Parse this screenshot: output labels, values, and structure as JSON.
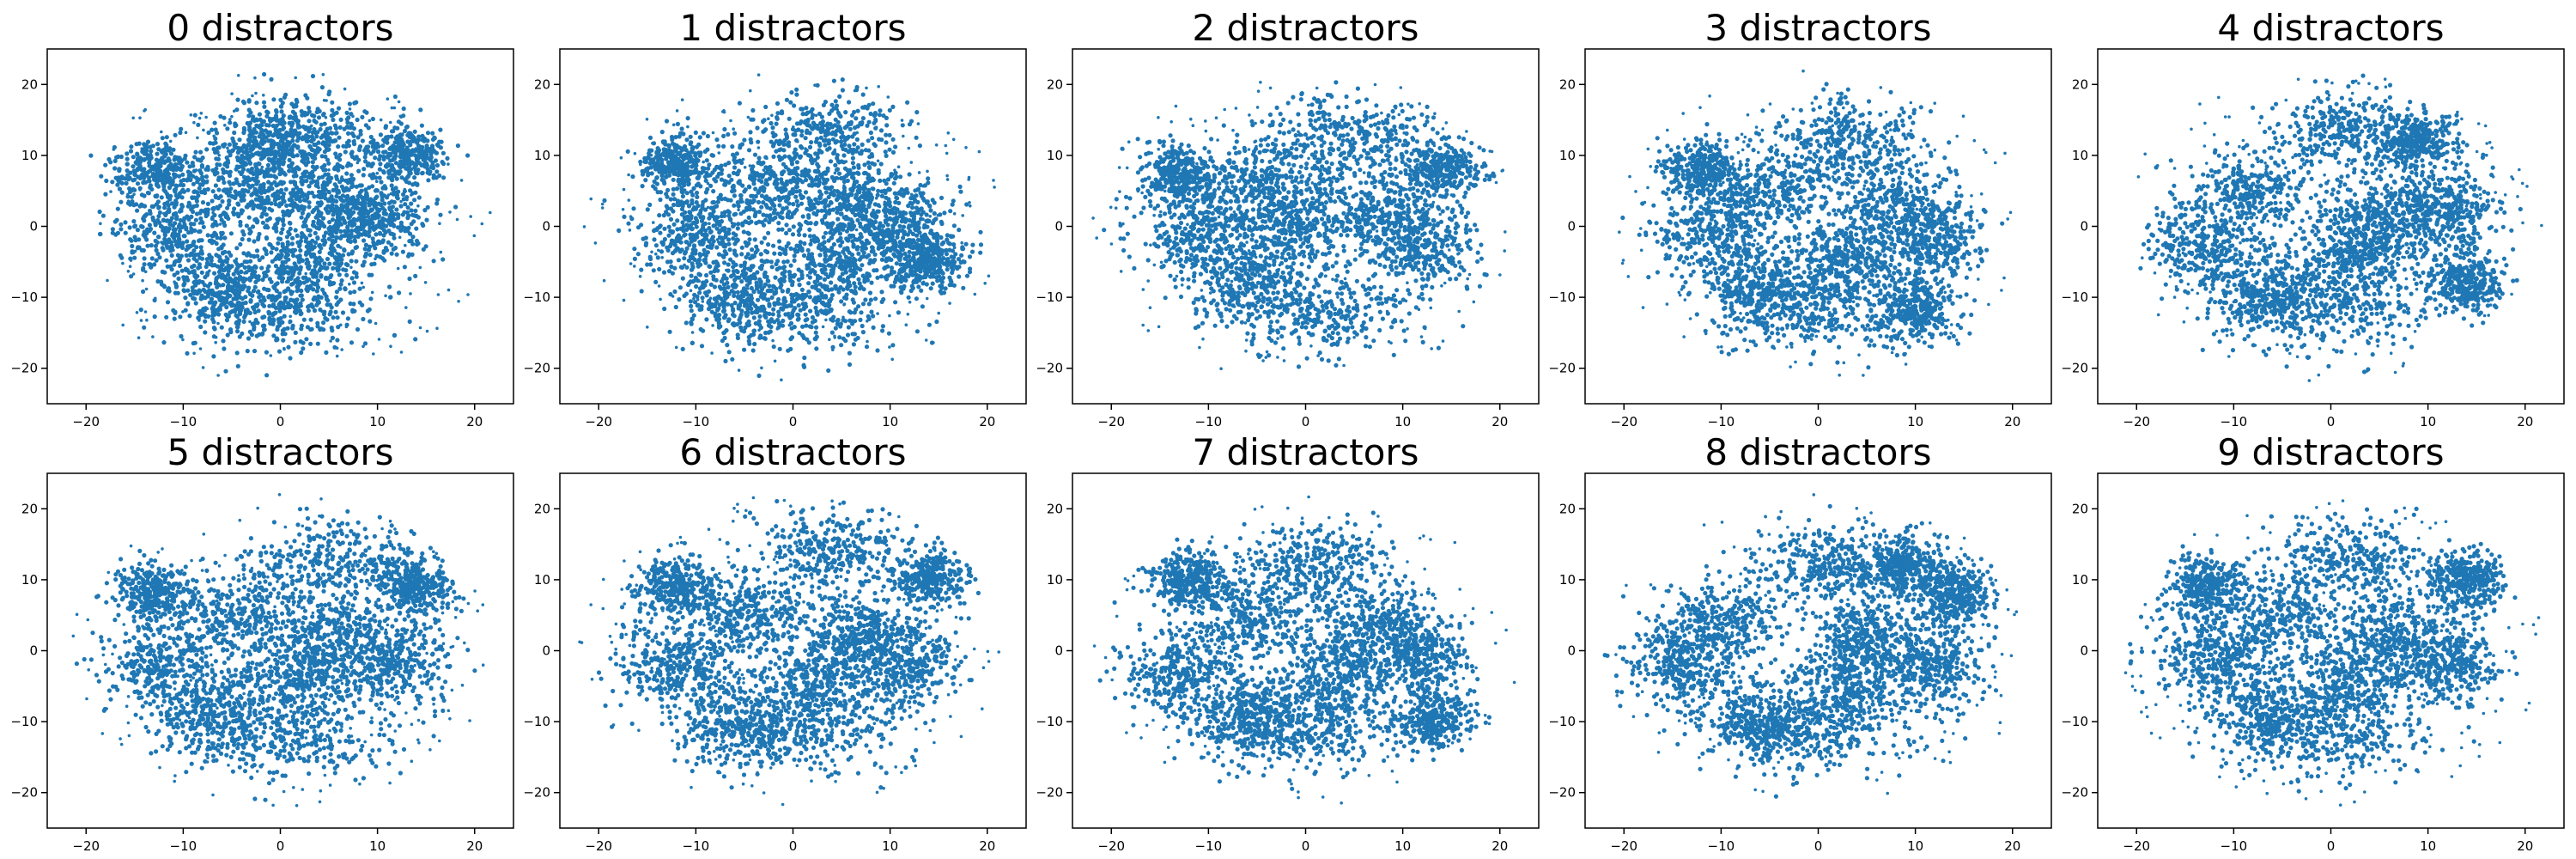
{
  "figure": {
    "marker_color": "#1f77b4",
    "axes_color": "#000000",
    "background": "#ffffff"
  },
  "chart_data": [
    {
      "type": "scatter",
      "title": "0 distractors",
      "xlabel": "",
      "ylabel": "",
      "xlim": [
        -24,
        24
      ],
      "ylim": [
        -25,
        25
      ],
      "xticks": [
        -20,
        -10,
        0,
        10,
        20
      ],
      "yticks": [
        -20,
        -10,
        0,
        10,
        20
      ],
      "grid": false,
      "legend": "none",
      "clusters": [
        [
          2.5,
          13,
          4,
          3
        ],
        [
          -4,
          5,
          3.5,
          3
        ],
        [
          -11,
          -1,
          3,
          3
        ],
        [
          5,
          3,
          3,
          3
        ],
        [
          0,
          -12,
          5,
          3
        ],
        [
          -6,
          -9,
          3,
          3
        ],
        [
          10,
          1,
          2.5,
          3
        ],
        [
          3,
          -5,
          3,
          3
        ],
        [
          -1,
          11,
          3,
          3
        ],
        [
          -13,
          8,
          2,
          2
        ],
        [
          13,
          10,
          2,
          2
        ]
      ],
      "seed": 11
    },
    {
      "type": "scatter",
      "title": "1 distractors",
      "xlabel": "",
      "ylabel": "",
      "xlim": [
        -24,
        24
      ],
      "ylim": [
        -25,
        25
      ],
      "xticks": [
        -20,
        -10,
        0,
        10,
        20
      ],
      "yticks": [
        -20,
        -10,
        0,
        10,
        20
      ],
      "grid": false,
      "legend": "none",
      "clusters": [
        [
          3,
          13,
          4,
          3
        ],
        [
          -3,
          5,
          3.5,
          3
        ],
        [
          -10,
          -1,
          3,
          3
        ],
        [
          6,
          4,
          3,
          3
        ],
        [
          1,
          -12,
          5,
          3
        ],
        [
          -6,
          -9,
          3,
          3
        ],
        [
          11,
          0,
          2.5,
          3
        ],
        [
          4,
          -5,
          3,
          3
        ],
        [
          -12,
          9,
          2,
          2
        ],
        [
          14,
          -5,
          2,
          2
        ]
      ],
      "seed": 23
    },
    {
      "type": "scatter",
      "title": "2 distractors",
      "xlabel": "",
      "ylabel": "",
      "xlim": [
        -24,
        24
      ],
      "ylim": [
        -25,
        25
      ],
      "xticks": [
        -20,
        -10,
        0,
        10,
        20
      ],
      "yticks": [
        -20,
        -10,
        0,
        10,
        20
      ],
      "grid": false,
      "legend": "none",
      "clusters": [
        [
          4,
          13,
          4,
          3
        ],
        [
          -4,
          6,
          3.5,
          3
        ],
        [
          -11,
          -1,
          3,
          3
        ],
        [
          7,
          2,
          3,
          3
        ],
        [
          1,
          -12,
          5,
          3
        ],
        [
          -6,
          -8,
          3,
          3
        ],
        [
          12,
          -3,
          2.5,
          3
        ],
        [
          -2,
          0,
          3,
          3
        ],
        [
          -13,
          7,
          2,
          2
        ],
        [
          14,
          8,
          2,
          2
        ]
      ],
      "seed": 37
    },
    {
      "type": "scatter",
      "title": "3 distractors",
      "xlabel": "",
      "ylabel": "",
      "xlim": [
        -24,
        24
      ],
      "ylim": [
        -25,
        25
      ],
      "xticks": [
        -20,
        -10,
        0,
        10,
        20
      ],
      "yticks": [
        -20,
        -10,
        0,
        10,
        20
      ],
      "grid": false,
      "legend": "none",
      "clusters": [
        [
          3,
          12,
          4,
          3
        ],
        [
          -5,
          5,
          3.5,
          3
        ],
        [
          -11,
          -1,
          3,
          3
        ],
        [
          8,
          3,
          3,
          3
        ],
        [
          0,
          -11,
          5,
          3
        ],
        [
          -6,
          -9,
          3,
          3
        ],
        [
          12,
          -2,
          2.5,
          3
        ],
        [
          3,
          -4,
          3,
          3
        ],
        [
          -12,
          8,
          2,
          2
        ],
        [
          10,
          -12,
          2,
          2
        ]
      ],
      "seed": 41
    },
    {
      "type": "scatter",
      "title": "4 distractors",
      "xlabel": "",
      "ylabel": "",
      "xlim": [
        -24,
        24
      ],
      "ylim": [
        -25,
        25
      ],
      "xticks": [
        -20,
        -10,
        0,
        10,
        20
      ],
      "yticks": [
        -20,
        -10,
        0,
        10,
        20
      ],
      "grid": false,
      "legend": "none",
      "clusters": [
        [
          2,
          13,
          4,
          3
        ],
        [
          -8,
          5,
          3.5,
          3
        ],
        [
          -13,
          -3,
          3,
          3
        ],
        [
          6,
          1,
          3,
          3
        ],
        [
          0,
          -11,
          5,
          3
        ],
        [
          -6,
          -10,
          3,
          3
        ],
        [
          12,
          2,
          2.5,
          3
        ],
        [
          2,
          -4,
          3,
          3
        ],
        [
          9,
          12,
          2,
          2
        ],
        [
          14,
          -8,
          2,
          2
        ]
      ],
      "seed": 53
    },
    {
      "type": "scatter",
      "title": "5 distractors",
      "xlabel": "",
      "ylabel": "",
      "xlim": [
        -24,
        24
      ],
      "ylim": [
        -25,
        25
      ],
      "xticks": [
        -20,
        -10,
        0,
        10,
        20
      ],
      "yticks": [
        -20,
        -10,
        0,
        10,
        20
      ],
      "grid": false,
      "legend": "none",
      "clusters": [
        [
          5,
          12,
          4,
          3
        ],
        [
          -4,
          5,
          3.5,
          3
        ],
        [
          -12,
          -2,
          3,
          3
        ],
        [
          6,
          2,
          3,
          3
        ],
        [
          1,
          -12,
          5,
          3
        ],
        [
          -7,
          -9,
          3,
          3
        ],
        [
          12,
          -2,
          2.5,
          3
        ],
        [
          2,
          -4,
          3,
          3
        ],
        [
          -13,
          8,
          2,
          2
        ],
        [
          14,
          9,
          2,
          2
        ]
      ],
      "seed": 67
    },
    {
      "type": "scatter",
      "title": "6 distractors",
      "xlabel": "",
      "ylabel": "",
      "xlim": [
        -24,
        24
      ],
      "ylim": [
        -25,
        25
      ],
      "xticks": [
        -20,
        -10,
        0,
        10,
        20
      ],
      "yticks": [
        -20,
        -10,
        0,
        10,
        20
      ],
      "grid": false,
      "legend": "none",
      "clusters": [
        [
          4,
          14,
          4,
          3
        ],
        [
          -5,
          5,
          3.5,
          3
        ],
        [
          -12,
          -2,
          3,
          3
        ],
        [
          7,
          2,
          3,
          3
        ],
        [
          1,
          -11,
          5,
          3
        ],
        [
          -6,
          -10,
          3,
          3
        ],
        [
          12,
          -2,
          2.5,
          3
        ],
        [
          3,
          -4,
          3,
          3
        ],
        [
          -12,
          9,
          2,
          2
        ],
        [
          14,
          10,
          2,
          2
        ]
      ],
      "seed": 71
    },
    {
      "type": "scatter",
      "title": "7 distractors",
      "xlabel": "",
      "ylabel": "",
      "xlim": [
        -24,
        24
      ],
      "ylim": [
        -25,
        25
      ],
      "xticks": [
        -20,
        -10,
        0,
        10,
        20
      ],
      "yticks": [
        -20,
        -10,
        0,
        10,
        20
      ],
      "grid": false,
      "legend": "none",
      "clusters": [
        [
          1,
          12,
          4,
          3
        ],
        [
          -6,
          5,
          3.5,
          3
        ],
        [
          -13,
          -3,
          3,
          3
        ],
        [
          7,
          3,
          3,
          3
        ],
        [
          0,
          -11,
          5,
          3
        ],
        [
          -6,
          -9,
          3,
          3
        ],
        [
          12,
          -1,
          2.5,
          3
        ],
        [
          3,
          -4,
          3,
          3
        ],
        [
          -12,
          10,
          2,
          2
        ],
        [
          13,
          -10,
          2,
          2
        ]
      ],
      "seed": 83
    },
    {
      "type": "scatter",
      "title": "8 distractors",
      "xlabel": "",
      "ylabel": "",
      "xlim": [
        -24,
        24
      ],
      "ylim": [
        -25,
        25
      ],
      "xticks": [
        -20,
        -10,
        0,
        10,
        20
      ],
      "yticks": [
        -20,
        -10,
        0,
        10,
        20
      ],
      "grid": false,
      "legend": "none",
      "clusters": [
        [
          1,
          12,
          4,
          3
        ],
        [
          -10,
          4,
          3.5,
          3
        ],
        [
          -14,
          -2,
          3,
          3
        ],
        [
          6,
          2,
          3,
          3
        ],
        [
          0,
          -11,
          5,
          3
        ],
        [
          -6,
          -10,
          3,
          3
        ],
        [
          12,
          -2,
          2.5,
          3
        ],
        [
          3,
          -4,
          3,
          3
        ],
        [
          9,
          12,
          2,
          2
        ],
        [
          14,
          8,
          2,
          2
        ]
      ],
      "seed": 97
    },
    {
      "type": "scatter",
      "title": "9 distractors",
      "xlabel": "",
      "ylabel": "",
      "xlim": [
        -24,
        24
      ],
      "ylim": [
        -25,
        25
      ],
      "xticks": [
        -20,
        -10,
        0,
        10,
        20
      ],
      "yticks": [
        -20,
        -10,
        0,
        10,
        20
      ],
      "grid": false,
      "legend": "none",
      "clusters": [
        [
          2,
          13,
          4,
          3
        ],
        [
          -5,
          5,
          3.5,
          3
        ],
        [
          -12,
          -1,
          3,
          3
        ],
        [
          7,
          2,
          3,
          3
        ],
        [
          0,
          -12,
          5,
          3
        ],
        [
          -7,
          -9,
          3,
          3
        ],
        [
          12,
          -2,
          2.5,
          3
        ],
        [
          2,
          -4,
          3,
          3
        ],
        [
          -13,
          9,
          2,
          2
        ],
        [
          14,
          10,
          2,
          2
        ]
      ],
      "seed": 101
    }
  ]
}
